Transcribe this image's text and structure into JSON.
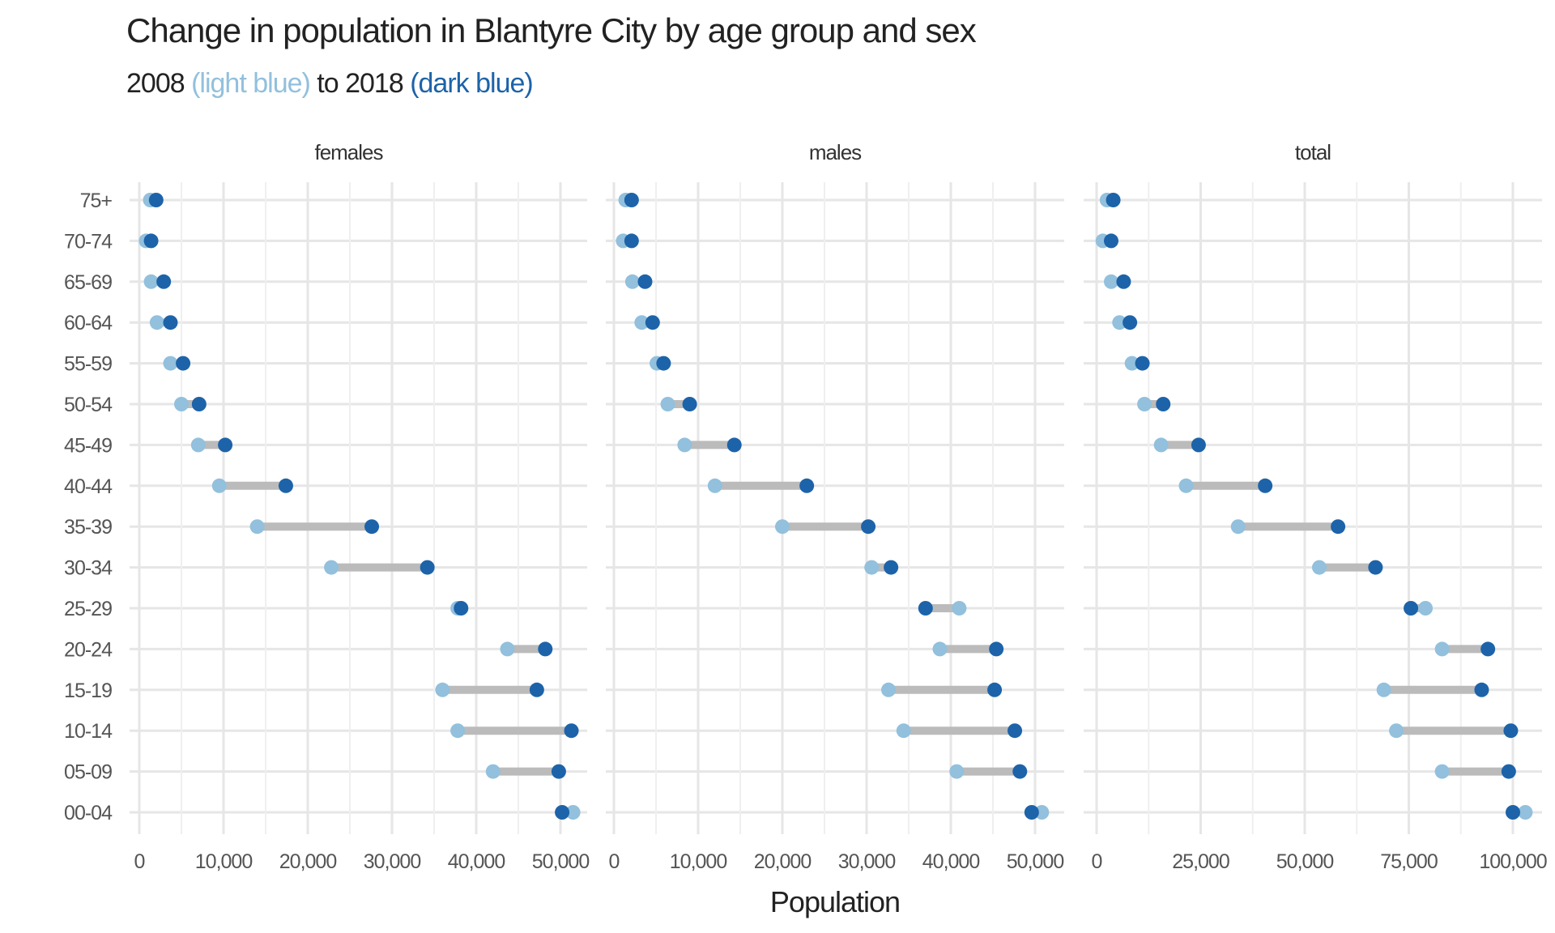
{
  "title": "Change in population in Blantyre City by age group and sex",
  "subtitle": {
    "year_start": "2008",
    "label_start": "(light blue)",
    "connector": "to",
    "year_end": "2018",
    "label_end": "(dark blue)"
  },
  "colors": {
    "y2008": "#92c0dd",
    "y2018": "#1d63a9",
    "segment": "#bbbbbb",
    "grid": "#e6e6e6",
    "text": "#555555"
  },
  "chart_data": {
    "type": "dumbbell",
    "xlabel": "Population",
    "grid": true,
    "age_groups": [
      "00-04",
      "05-09",
      "10-14",
      "15-19",
      "20-24",
      "25-29",
      "30-34",
      "35-39",
      "40-44",
      "45-49",
      "50-54",
      "55-59",
      "60-64",
      "65-69",
      "70-74",
      "75+"
    ],
    "panels": [
      {
        "name": "females",
        "xlim": [
          0,
          53000
        ],
        "ticks": [
          0,
          10000,
          20000,
          30000,
          40000,
          50000
        ],
        "tick_labels": [
          "0",
          "10,000",
          "20,000",
          "30,000",
          "40,000",
          "50,000"
        ],
        "values_2008": [
          51500,
          42000,
          37800,
          36000,
          43700,
          37800,
          22800,
          14000,
          9500,
          7000,
          5000,
          3700,
          2100,
          1400,
          800,
          1300
        ],
        "values_2018": [
          50200,
          49800,
          51300,
          47200,
          48200,
          38200,
          34200,
          27600,
          17400,
          10200,
          7100,
          5200,
          3700,
          2900,
          1400,
          2000
        ]
      },
      {
        "name": "males",
        "xlim": [
          0,
          53000
        ],
        "ticks": [
          0,
          10000,
          20000,
          30000,
          40000,
          50000
        ],
        "tick_labels": [
          "0",
          "10,000",
          "20,000",
          "30,000",
          "40,000",
          "50,000"
        ],
        "values_2008": [
          50800,
          40700,
          34400,
          32600,
          38700,
          41000,
          30600,
          20000,
          12000,
          8400,
          6400,
          5100,
          3300,
          2200,
          1100,
          1400
        ],
        "values_2018": [
          49600,
          48200,
          47600,
          45200,
          45400,
          37000,
          32900,
          30200,
          22900,
          14300,
          9000,
          5900,
          4600,
          3700,
          2100,
          2100
        ]
      },
      {
        "name": "total",
        "xlim": [
          0,
          106000
        ],
        "ticks": [
          0,
          25000,
          50000,
          75000,
          100000
        ],
        "tick_labels": [
          "0",
          "25,000",
          "50,000",
          "75,000",
          "100,000"
        ],
        "values_2008": [
          103000,
          83000,
          72000,
          69000,
          83000,
          79000,
          53500,
          34000,
          21500,
          15500,
          11500,
          8500,
          5500,
          3500,
          1500,
          2500
        ],
        "values_2018": [
          100000,
          99000,
          99500,
          92500,
          94000,
          75500,
          67000,
          58000,
          40500,
          24500,
          16000,
          11000,
          8000,
          6500,
          3500,
          4000
        ]
      }
    ]
  }
}
